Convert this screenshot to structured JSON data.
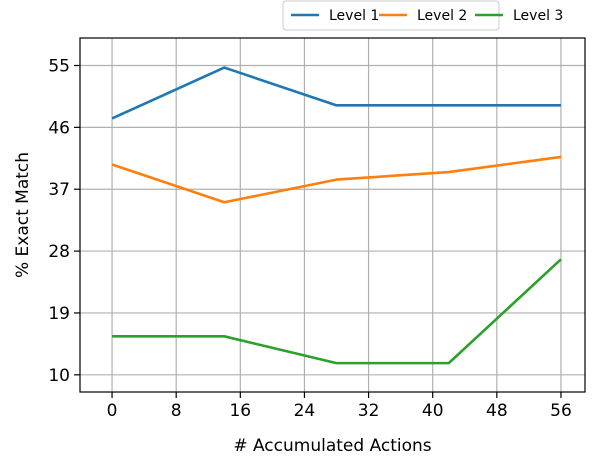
{
  "chart_data": {
    "type": "line",
    "xlabel": "# Accumulated Actions",
    "ylabel": "% Exact Match",
    "xlim": [
      -4,
      59
    ],
    "ylim": [
      7.5,
      59
    ],
    "xticks": [
      "0",
      "8",
      "16",
      "24",
      "32",
      "40",
      "48",
      "56"
    ],
    "yticks": [
      "10",
      "19",
      "28",
      "37",
      "46",
      "55"
    ],
    "grid": true,
    "legend_position": "top",
    "x": [
      0,
      14,
      28,
      42,
      56
    ],
    "series": [
      {
        "name": "Level 1",
        "color": "#1f77b4",
        "values": [
          47.3,
          54.7,
          49.2,
          49.2,
          49.2
        ]
      },
      {
        "name": "Level 2",
        "color": "#ff7f0e",
        "values": [
          40.6,
          35.1,
          38.4,
          39.5,
          41.7
        ]
      },
      {
        "name": "Level 3",
        "color": "#2ca02c",
        "values": [
          15.6,
          15.6,
          11.7,
          11.7,
          26.8
        ]
      }
    ]
  }
}
